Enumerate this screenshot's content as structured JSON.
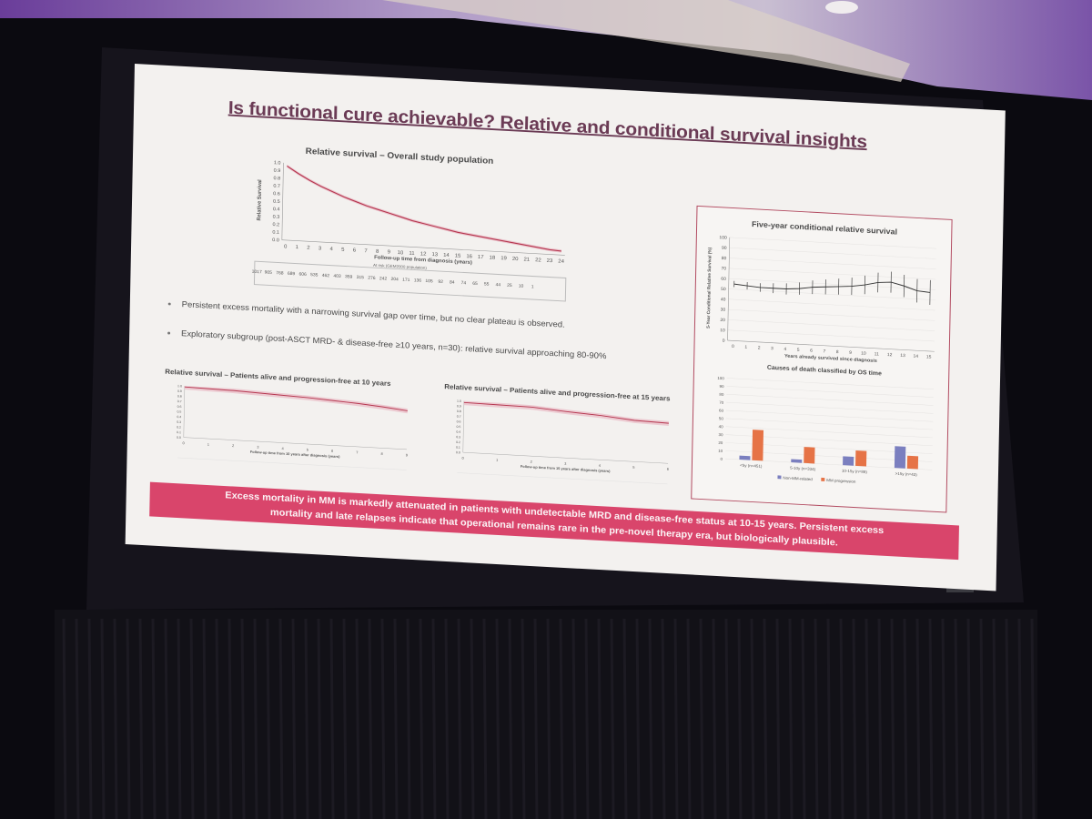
{
  "slide": {
    "title": "Is functional cure achievable? Relative and conditional survival insights",
    "overall_chart": {
      "heading": "Relative survival – Overall study population",
      "ylabel": "Relative Survival",
      "xlabel": "Follow-up time from diagnosis (years)",
      "risk_label": "At risk (GEM2000 population)",
      "y_ticks": [
        "1.0",
        "0.9",
        "0.8",
        "0.7",
        "0.6",
        "0.5",
        "0.4",
        "0.3",
        "0.2",
        "0.1",
        "0.0"
      ],
      "x_ticks": [
        "0",
        "1",
        "2",
        "3",
        "4",
        "5",
        "6",
        "7",
        "8",
        "9",
        "10",
        "11",
        "12",
        "13",
        "14",
        "15",
        "16",
        "17",
        "18",
        "19",
        "20",
        "21",
        "22",
        "23",
        "24"
      ],
      "at_risk": [
        "1017",
        "905",
        "768",
        "689",
        "606",
        "535",
        "462",
        "403",
        "359",
        "315",
        "276",
        "242",
        "204",
        "171",
        "136",
        "105",
        "92",
        "84",
        "74",
        "65",
        "55",
        "44",
        "25",
        "10",
        "1"
      ],
      "curve": [
        [
          0,
          0.96
        ],
        [
          1,
          0.87
        ],
        [
          2,
          0.79
        ],
        [
          3,
          0.72
        ],
        [
          4,
          0.66
        ],
        [
          5,
          0.6
        ],
        [
          6,
          0.55
        ],
        [
          7,
          0.5
        ],
        [
          8,
          0.46
        ],
        [
          9,
          0.42
        ],
        [
          10,
          0.38
        ],
        [
          11,
          0.34
        ],
        [
          12,
          0.31
        ],
        [
          13,
          0.28
        ],
        [
          14,
          0.25
        ],
        [
          15,
          0.22
        ],
        [
          16,
          0.2
        ],
        [
          17,
          0.18
        ],
        [
          18,
          0.16
        ],
        [
          19,
          0.14
        ],
        [
          20,
          0.12
        ],
        [
          21,
          0.1
        ],
        [
          22,
          0.08
        ],
        [
          23,
          0.06
        ],
        [
          24,
          0.05
        ]
      ]
    },
    "bullets": [
      "Persistent excess mortality with a narrowing survival gap over time, but no clear plateau is observed.",
      "Exploratory subgroup (post-ASCT MRD- & disease-free ≥10 years, n=30): relative survival approaching 80-90%"
    ],
    "small_chart_1": {
      "heading": "Relative survival – Patients alive and progression-free at 10 years",
      "xlabel": "Follow-up time from 10 years after diagnosis (years)",
      "curve": [
        [
          0,
          0.98
        ],
        [
          1,
          0.97
        ],
        [
          2,
          0.96
        ],
        [
          3,
          0.94
        ],
        [
          4,
          0.92
        ],
        [
          5,
          0.9
        ],
        [
          6,
          0.87
        ],
        [
          7,
          0.84
        ],
        [
          8,
          0.8
        ],
        [
          9,
          0.75
        ]
      ]
    },
    "small_chart_2": {
      "heading": "Relative survival – Patients alive and progression-free at 15 years",
      "xlabel": "Follow-up time from 15 years after diagnosis (years)",
      "curve": [
        [
          0,
          0.97
        ],
        [
          1,
          0.96
        ],
        [
          2,
          0.95
        ],
        [
          3,
          0.9
        ],
        [
          4,
          0.86
        ],
        [
          5,
          0.8
        ],
        [
          6,
          0.78
        ]
      ]
    },
    "conditional_chart": {
      "heading": "Five-year conditional relative survival",
      "ylabel": "5-Year Conditional Relative Survival (%)",
      "xlabel": "Years already survived since diagnosis",
      "y_ticks": [
        "100",
        "90",
        "80",
        "70",
        "60",
        "50",
        "40",
        "30",
        "20",
        "10",
        "0"
      ],
      "x_ticks": [
        "0",
        "1",
        "2",
        "3",
        "4",
        "5",
        "6",
        "7",
        "8",
        "9",
        "10",
        "11",
        "12",
        "13",
        "14",
        "15"
      ],
      "values": [
        [
          0,
          55
        ],
        [
          1,
          54
        ],
        [
          2,
          53
        ],
        [
          3,
          53
        ],
        [
          4,
          53
        ],
        [
          5,
          54
        ],
        [
          6,
          56
        ],
        [
          7,
          57
        ],
        [
          8,
          58
        ],
        [
          9,
          59
        ],
        [
          10,
          61
        ],
        [
          11,
          64
        ],
        [
          12,
          65
        ],
        [
          13,
          62
        ],
        [
          14,
          58
        ],
        [
          15,
          57
        ]
      ]
    },
    "causes_chart": {
      "heading": "Causes of death classified by OS time",
      "y_ticks": [
        "100",
        "90",
        "80",
        "70",
        "60",
        "50",
        "40",
        "30",
        "20",
        "10",
        "0"
      ],
      "categories": [
        "<5y (n=451)",
        "5-10y (n=334)",
        "10-15y (n=88)",
        ">15y (n=43)"
      ],
      "series": [
        {
          "name": "Non-MM-related",
          "values": [
            5,
            4,
            11,
            27
          ],
          "color": "#7b7fbf"
        },
        {
          "name": "MM progression",
          "values": [
            38,
            20,
            19,
            16
          ],
          "color": "#e67346"
        }
      ]
    },
    "banner": {
      "line1": "Excess mortality in MM is markedly attenuated in patients with undetectable MRD and disease-free status at 10-15 years. Persistent excess",
      "line2": "mortality and late relapses indicate that operational remains rare in the pre-novel therapy era, but biologically plausible."
    }
  }
}
